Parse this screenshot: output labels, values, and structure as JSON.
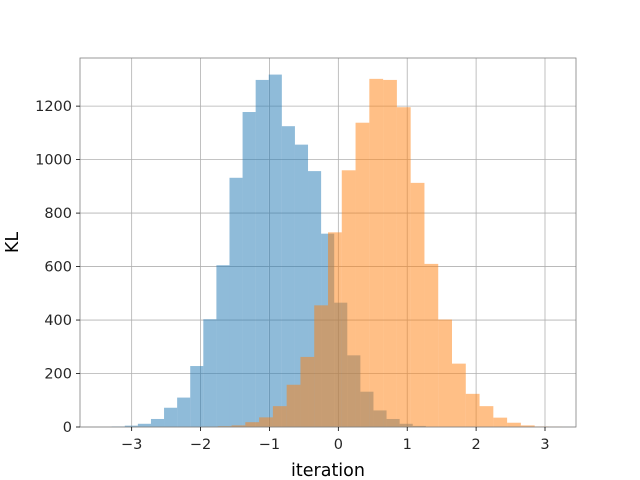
{
  "chart_data": {
    "type": "histogram",
    "xlabel": "iteration",
    "ylabel": "KL",
    "xlim": [
      -3.75,
      3.45
    ],
    "ylim": [
      0,
      1380
    ],
    "grid": true,
    "xticks": [
      -3,
      -2,
      -1,
      0,
      1,
      2,
      3
    ],
    "xtick_labels": [
      "−3",
      "−2",
      "−1",
      "0",
      "1",
      "2",
      "3"
    ],
    "yticks": [
      0,
      200,
      400,
      600,
      800,
      1000,
      1200
    ],
    "ytick_labels": [
      "0",
      "200",
      "400",
      "600",
      "800",
      "1000",
      "1200"
    ],
    "series": [
      {
        "color": "#1f77b4",
        "opacity": 0.5,
        "bins": [
          {
            "x0": -3.29,
            "x1": -3.1,
            "y": 2
          },
          {
            "x0": -3.1,
            "x1": -2.91,
            "y": 5
          },
          {
            "x0": -2.91,
            "x1": -2.72,
            "y": 12
          },
          {
            "x0": -2.72,
            "x1": -2.53,
            "y": 30
          },
          {
            "x0": -2.53,
            "x1": -2.34,
            "y": 72
          },
          {
            "x0": -2.34,
            "x1": -2.15,
            "y": 110
          },
          {
            "x0": -2.15,
            "x1": -1.96,
            "y": 228
          },
          {
            "x0": -1.96,
            "x1": -1.77,
            "y": 403
          },
          {
            "x0": -1.77,
            "x1": -1.58,
            "y": 605
          },
          {
            "x0": -1.58,
            "x1": -1.39,
            "y": 932
          },
          {
            "x0": -1.39,
            "x1": -1.2,
            "y": 1178
          },
          {
            "x0": -1.2,
            "x1": -1.01,
            "y": 1298
          },
          {
            "x0": -1.01,
            "x1": -0.82,
            "y": 1318
          },
          {
            "x0": -0.82,
            "x1": -0.63,
            "y": 1125
          },
          {
            "x0": -0.63,
            "x1": -0.44,
            "y": 1056
          },
          {
            "x0": -0.44,
            "x1": -0.25,
            "y": 957
          },
          {
            "x0": -0.25,
            "x1": -0.06,
            "y": 723
          },
          {
            "x0": -0.06,
            "x1": 0.13,
            "y": 465
          },
          {
            "x0": 0.13,
            "x1": 0.32,
            "y": 268
          },
          {
            "x0": 0.32,
            "x1": 0.51,
            "y": 132
          },
          {
            "x0": 0.51,
            "x1": 0.7,
            "y": 62
          },
          {
            "x0": 0.7,
            "x1": 0.89,
            "y": 30
          },
          {
            "x0": 0.89,
            "x1": 1.08,
            "y": 12
          },
          {
            "x0": 1.08,
            "x1": 1.27,
            "y": 4
          }
        ]
      },
      {
        "color": "#ff7f0e",
        "opacity": 0.5,
        "bins": [
          {
            "x0": -1.95,
            "x1": -1.75,
            "y": 1
          },
          {
            "x0": -1.75,
            "x1": -1.55,
            "y": 3
          },
          {
            "x0": -1.55,
            "x1": -1.35,
            "y": 6
          },
          {
            "x0": -1.35,
            "x1": -1.15,
            "y": 18
          },
          {
            "x0": -1.15,
            "x1": -0.95,
            "y": 36
          },
          {
            "x0": -0.95,
            "x1": -0.75,
            "y": 78
          },
          {
            "x0": -0.75,
            "x1": -0.55,
            "y": 158
          },
          {
            "x0": -0.55,
            "x1": -0.35,
            "y": 262
          },
          {
            "x0": -0.35,
            "x1": -0.15,
            "y": 455
          },
          {
            "x0": -0.15,
            "x1": 0.05,
            "y": 728
          },
          {
            "x0": 0.05,
            "x1": 0.25,
            "y": 960
          },
          {
            "x0": 0.25,
            "x1": 0.45,
            "y": 1138
          },
          {
            "x0": 0.45,
            "x1": 0.65,
            "y": 1302
          },
          {
            "x0": 0.65,
            "x1": 0.85,
            "y": 1298
          },
          {
            "x0": 0.85,
            "x1": 1.05,
            "y": 1196
          },
          {
            "x0": 1.05,
            "x1": 1.25,
            "y": 913
          },
          {
            "x0": 1.25,
            "x1": 1.45,
            "y": 610
          },
          {
            "x0": 1.45,
            "x1": 1.65,
            "y": 402
          },
          {
            "x0": 1.65,
            "x1": 1.85,
            "y": 237
          },
          {
            "x0": 1.85,
            "x1": 2.05,
            "y": 124
          },
          {
            "x0": 2.05,
            "x1": 2.25,
            "y": 78
          },
          {
            "x0": 2.25,
            "x1": 2.45,
            "y": 35
          },
          {
            "x0": 2.45,
            "x1": 2.65,
            "y": 16
          },
          {
            "x0": 2.65,
            "x1": 2.85,
            "y": 6
          },
          {
            "x0": 2.85,
            "x1": 3.05,
            "y": 2
          },
          {
            "x0": 3.05,
            "x1": 3.25,
            "y": 1
          }
        ]
      }
    ]
  }
}
